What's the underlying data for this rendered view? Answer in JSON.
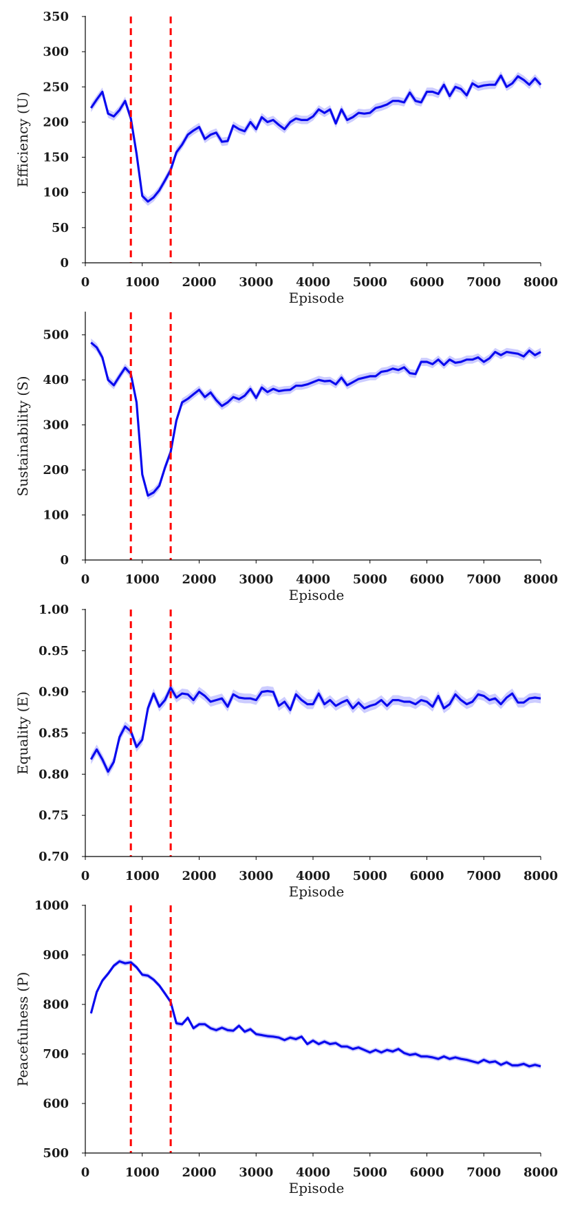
{
  "chart_data": [
    {
      "type": "line",
      "ylabel": "Efficiency (U)",
      "xlabel": "Episode",
      "xlim": [
        0,
        8000
      ],
      "ylim": [
        0,
        350
      ],
      "xticks": [
        0,
        1000,
        2000,
        3000,
        4000,
        5000,
        6000,
        7000,
        8000
      ],
      "yticks": [
        0,
        50,
        100,
        150,
        200,
        250,
        300,
        350
      ],
      "vlines": [
        800,
        1500
      ],
      "band": 6,
      "x": [
        100,
        200,
        300,
        400,
        500,
        600,
        700,
        800,
        900,
        1000,
        1100,
        1200,
        1300,
        1400,
        1500,
        1600,
        1700,
        1800,
        1900,
        2000,
        2100,
        2200,
        2300,
        2400,
        2500,
        2600,
        2700,
        2800,
        2900,
        3000,
        3100,
        3200,
        3300,
        3400,
        3500,
        3600,
        3700,
        3800,
        3900,
        4000,
        4100,
        4200,
        4300,
        4400,
        4500,
        4600,
        4700,
        4800,
        4900,
        5000,
        5100,
        5200,
        5300,
        5400,
        5500,
        5600,
        5700,
        5800,
        5900,
        6000,
        6100,
        6200,
        6300,
        6400,
        6500,
        6600,
        6700,
        6800,
        6900,
        7000,
        7100,
        7200,
        7300,
        7400,
        7500,
        7600,
        7700,
        7800,
        7900,
        8000
      ],
      "y": [
        220,
        232,
        243,
        212,
        208,
        217,
        230,
        205,
        155,
        95,
        87,
        93,
        103,
        117,
        132,
        157,
        168,
        182,
        188,
        193,
        176,
        182,
        185,
        172,
        173,
        195,
        190,
        187,
        200,
        190,
        207,
        200,
        203,
        196,
        190,
        200,
        205,
        203,
        203,
        208,
        218,
        213,
        218,
        198,
        218,
        203,
        207,
        213,
        212,
        213,
        220,
        222,
        225,
        230,
        230,
        228,
        242,
        230,
        228,
        243,
        243,
        240,
        253,
        237,
        250,
        247,
        238,
        255,
        250,
        252,
        253,
        253,
        266,
        250,
        255,
        265,
        260,
        253,
        262,
        253
      ]
    },
    {
      "type": "line",
      "ylabel": "Sustainability (S)",
      "xlabel": "Episode",
      "xlim": [
        0,
        8000
      ],
      "ylim": [
        0,
        550
      ],
      "xticks": [
        0,
        1000,
        2000,
        3000,
        4000,
        5000,
        6000,
        7000,
        8000
      ],
      "yticks": [
        0,
        100,
        200,
        300,
        400,
        500
      ],
      "vlines": [
        800,
        1500
      ],
      "band": 9,
      "x": [
        100,
        200,
        300,
        400,
        500,
        600,
        700,
        800,
        900,
        1000,
        1100,
        1200,
        1300,
        1400,
        1500,
        1600,
        1700,
        1800,
        1900,
        2000,
        2100,
        2200,
        2300,
        2400,
        2500,
        2600,
        2700,
        2800,
        2900,
        3000,
        3100,
        3200,
        3300,
        3400,
        3500,
        3600,
        3700,
        3800,
        3900,
        4000,
        4100,
        4200,
        4300,
        4400,
        4500,
        4600,
        4700,
        4800,
        4900,
        5000,
        5100,
        5200,
        5300,
        5400,
        5500,
        5600,
        5700,
        5800,
        5900,
        6000,
        6100,
        6200,
        6300,
        6400,
        6500,
        6600,
        6700,
        6800,
        6900,
        7000,
        7100,
        7200,
        7300,
        7400,
        7500,
        7600,
        7700,
        7800,
        7900,
        8000
      ],
      "y": [
        483,
        472,
        450,
        400,
        388,
        408,
        427,
        413,
        350,
        190,
        143,
        150,
        165,
        205,
        240,
        310,
        350,
        358,
        368,
        378,
        362,
        372,
        355,
        342,
        350,
        362,
        357,
        365,
        380,
        360,
        383,
        373,
        380,
        375,
        377,
        378,
        387,
        387,
        390,
        395,
        400,
        397,
        398,
        390,
        405,
        388,
        395,
        402,
        405,
        408,
        408,
        418,
        420,
        425,
        422,
        428,
        415,
        413,
        440,
        440,
        435,
        445,
        433,
        445,
        438,
        440,
        445,
        445,
        450,
        440,
        448,
        462,
        455,
        462,
        460,
        458,
        452,
        465,
        455,
        462
      ]
    },
    {
      "type": "line",
      "ylabel": "Equality (E)",
      "xlabel": "Episode",
      "xlim": [
        0,
        8000
      ],
      "ylim": [
        0.7,
        1.0
      ],
      "xticks": [
        0,
        1000,
        2000,
        3000,
        4000,
        5000,
        6000,
        7000,
        8000
      ],
      "yticks": [
        0.7,
        0.75,
        0.8,
        0.85,
        0.9,
        0.95,
        1.0
      ],
      "yticklabels": [
        "0.70",
        "0.75",
        "0.80",
        "0.85",
        "0.90",
        "0.95",
        "1.00"
      ],
      "vlines": [
        800,
        1500
      ],
      "band": 0.006,
      "x": [
        100,
        200,
        300,
        400,
        500,
        600,
        700,
        800,
        900,
        1000,
        1100,
        1200,
        1300,
        1400,
        1500,
        1600,
        1700,
        1800,
        1900,
        2000,
        2100,
        2200,
        2300,
        2400,
        2500,
        2600,
        2700,
        2800,
        2900,
        3000,
        3100,
        3200,
        3300,
        3400,
        3500,
        3600,
        3700,
        3800,
        3900,
        4000,
        4100,
        4200,
        4300,
        4400,
        4500,
        4600,
        4700,
        4800,
        4900,
        5000,
        5100,
        5200,
        5300,
        5400,
        5500,
        5600,
        5700,
        5800,
        5900,
        6000,
        6100,
        6200,
        6300,
        6400,
        6500,
        6600,
        6700,
        6800,
        6900,
        7000,
        7100,
        7200,
        7300,
        7400,
        7500,
        7600,
        7700,
        7800,
        7900,
        8000
      ],
      "y": [
        0.818,
        0.83,
        0.818,
        0.803,
        0.815,
        0.845,
        0.858,
        0.852,
        0.833,
        0.842,
        0.88,
        0.898,
        0.882,
        0.89,
        0.905,
        0.893,
        0.898,
        0.897,
        0.89,
        0.9,
        0.895,
        0.888,
        0.89,
        0.892,
        0.882,
        0.897,
        0.893,
        0.892,
        0.892,
        0.89,
        0.9,
        0.901,
        0.9,
        0.883,
        0.888,
        0.878,
        0.897,
        0.89,
        0.885,
        0.885,
        0.898,
        0.885,
        0.89,
        0.883,
        0.887,
        0.89,
        0.88,
        0.887,
        0.88,
        0.883,
        0.885,
        0.89,
        0.883,
        0.89,
        0.89,
        0.888,
        0.888,
        0.885,
        0.89,
        0.888,
        0.882,
        0.895,
        0.88,
        0.885,
        0.897,
        0.89,
        0.885,
        0.888,
        0.897,
        0.895,
        0.89,
        0.892,
        0.885,
        0.893,
        0.898,
        0.887,
        0.887,
        0.892,
        0.893,
        0.892
      ]
    },
    {
      "type": "line",
      "ylabel": "Peacefulness (P)",
      "xlabel": "Episode",
      "xlim": [
        0,
        8000
      ],
      "ylim": [
        500,
        1000
      ],
      "xticks": [
        0,
        1000,
        2000,
        3000,
        4000,
        5000,
        6000,
        7000,
        8000
      ],
      "yticks": [
        500,
        600,
        700,
        800,
        900,
        1000
      ],
      "vlines": [
        800,
        1500
      ],
      "band": 5,
      "x": [
        100,
        200,
        300,
        400,
        500,
        600,
        700,
        800,
        900,
        1000,
        1100,
        1200,
        1300,
        1400,
        1500,
        1600,
        1700,
        1800,
        1900,
        2000,
        2100,
        2200,
        2300,
        2400,
        2500,
        2600,
        2700,
        2800,
        2900,
        3000,
        3100,
        3200,
        3300,
        3400,
        3500,
        3600,
        3700,
        3800,
        3900,
        4000,
        4100,
        4200,
        4300,
        4400,
        4500,
        4600,
        4700,
        4800,
        4900,
        5000,
        5100,
        5200,
        5300,
        5400,
        5500,
        5600,
        5700,
        5800,
        5900,
        6000,
        6100,
        6200,
        6300,
        6400,
        6500,
        6600,
        6700,
        6800,
        6900,
        7000,
        7100,
        7200,
        7300,
        7400,
        7500,
        7600,
        7700,
        7800,
        7900,
        8000
      ],
      "y": [
        782,
        825,
        848,
        862,
        878,
        887,
        883,
        885,
        875,
        860,
        858,
        850,
        838,
        822,
        805,
        762,
        760,
        773,
        752,
        760,
        760,
        752,
        748,
        753,
        748,
        747,
        757,
        745,
        750,
        740,
        738,
        736,
        735,
        733,
        728,
        733,
        730,
        735,
        720,
        727,
        720,
        725,
        720,
        722,
        715,
        715,
        710,
        713,
        708,
        703,
        708,
        703,
        708,
        705,
        710,
        702,
        698,
        700,
        695,
        695,
        693,
        690,
        695,
        690,
        693,
        690,
        688,
        685,
        682,
        688,
        683,
        685,
        678,
        683,
        677,
        677,
        680,
        675,
        678,
        675
      ]
    }
  ]
}
